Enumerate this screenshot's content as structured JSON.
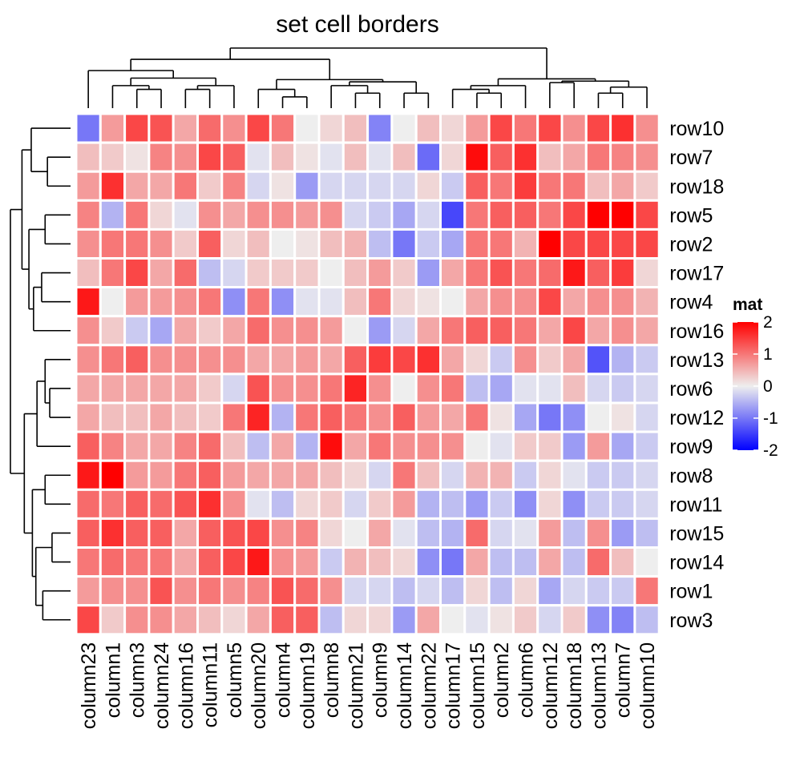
{
  "chart_data": {
    "type": "heatmap",
    "title": "set cell borders",
    "rows": [
      "row10",
      "row7",
      "row18",
      "row5",
      "row2",
      "row17",
      "row4",
      "row16",
      "row13",
      "row6",
      "row12",
      "row9",
      "row8",
      "row11",
      "row15",
      "row14",
      "row1",
      "row3"
    ],
    "columns": [
      "column23",
      "column1",
      "column3",
      "column24",
      "column16",
      "column11",
      "column5",
      "column20",
      "column4",
      "column19",
      "column8",
      "column21",
      "column9",
      "column14",
      "column22",
      "column17",
      "column15",
      "column2",
      "column6",
      "column12",
      "column18",
      "column13",
      "column7",
      "column10"
    ],
    "values": [
      [
        -1.0,
        0.7,
        1.4,
        1.3,
        0.6,
        1.1,
        0.8,
        1.4,
        1.0,
        0.0,
        0.2,
        0.4,
        -0.9,
        0.0,
        0.4,
        0.2,
        0.7,
        1.4,
        1.0,
        1.4,
        0.8,
        1.4,
        1.6,
        0.8
      ],
      [
        0.4,
        0.3,
        0.1,
        0.9,
        0.8,
        1.4,
        1.2,
        -0.1,
        0.4,
        0.1,
        -0.1,
        0.4,
        -0.1,
        0.4,
        -1.1,
        0.2,
        1.9,
        1.2,
        1.6,
        0.4,
        0.6,
        1.0,
        0.9,
        0.8
      ],
      [
        0.7,
        1.6,
        0.6,
        0.6,
        1.0,
        0.3,
        0.9,
        -0.2,
        0.1,
        -0.7,
        -0.2,
        -0.2,
        -0.2,
        -0.2,
        0.2,
        -0.3,
        1.2,
        1.0,
        1.5,
        1.0,
        1.0,
        0.4,
        0.6,
        0.3
      ],
      [
        0.9,
        -0.5,
        1.0,
        0.2,
        -0.1,
        0.8,
        0.6,
        0.8,
        0.8,
        0.7,
        0.8,
        -0.2,
        -0.3,
        -0.6,
        -0.2,
        -1.4,
        1.0,
        1.2,
        1.2,
        1.0,
        1.4,
        2.0,
        2.0,
        1.4
      ],
      [
        0.8,
        1.0,
        1.0,
        0.8,
        0.3,
        1.2,
        0.2,
        0.4,
        0.0,
        0.1,
        0.4,
        0.5,
        -0.4,
        -1.0,
        -0.3,
        -0.6,
        1.0,
        1.0,
        0.5,
        2.0,
        1.4,
        1.4,
        1.4,
        1.4
      ],
      [
        0.4,
        1.0,
        1.4,
        0.6,
        1.1,
        -0.4,
        -0.2,
        0.3,
        0.3,
        0.3,
        0.0,
        0.4,
        0.7,
        0.3,
        -0.7,
        0.6,
        1.0,
        1.3,
        1.0,
        1.1,
        1.8,
        1.2,
        1.5,
        0.2
      ],
      [
        1.8,
        0.0,
        0.7,
        0.7,
        0.8,
        1.0,
        -0.8,
        1.0,
        -0.8,
        -0.1,
        -0.1,
        0.4,
        1.0,
        0.2,
        0.1,
        0.0,
        0.6,
        0.8,
        0.8,
        1.4,
        0.6,
        0.8,
        0.8,
        0.5
      ],
      [
        0.8,
        0.3,
        -0.3,
        -0.6,
        0.6,
        0.3,
        0.6,
        1.1,
        0.8,
        0.8,
        0.7,
        0.0,
        -0.7,
        -0.2,
        0.6,
        1.0,
        1.2,
        1.2,
        1.0,
        0.6,
        1.4,
        0.6,
        0.8,
        0.6
      ],
      [
        0.8,
        1.0,
        1.2,
        0.8,
        0.8,
        0.8,
        0.8,
        0.6,
        0.6,
        0.7,
        0.6,
        1.2,
        1.5,
        1.4,
        1.6,
        0.6,
        0.2,
        -0.3,
        0.8,
        0.3,
        0.6,
        -1.3,
        -0.5,
        -0.3
      ],
      [
        0.6,
        0.6,
        0.6,
        0.6,
        0.6,
        0.3,
        -0.2,
        1.3,
        0.8,
        0.8,
        1.0,
        1.7,
        0.8,
        0.0,
        0.8,
        1.0,
        -0.4,
        -0.6,
        -0.1,
        -0.1,
        0.4,
        -0.2,
        -0.3,
        -0.2
      ],
      [
        0.6,
        0.4,
        0.4,
        0.6,
        0.4,
        0.3,
        1.0,
        1.7,
        -0.5,
        1.0,
        1.2,
        1.0,
        0.8,
        1.2,
        0.7,
        0.6,
        1.0,
        0.1,
        -0.6,
        -1.0,
        -0.8,
        0.0,
        0.1,
        -0.2
      ],
      [
        1.2,
        0.9,
        0.6,
        0.6,
        0.9,
        1.1,
        0.4,
        -0.4,
        0.6,
        -0.5,
        1.9,
        0.6,
        1.0,
        0.8,
        0.8,
        0.8,
        0.0,
        -0.1,
        0.3,
        0.3,
        -0.7,
        0.7,
        -0.6,
        -0.3
      ],
      [
        1.8,
        2.0,
        0.7,
        0.7,
        1.0,
        1.2,
        0.7,
        0.6,
        0.6,
        0.6,
        0.4,
        0.2,
        -0.2,
        1.0,
        0.4,
        -0.2,
        0.5,
        0.5,
        -0.3,
        0.2,
        -0.1,
        -0.3,
        -0.3,
        -0.2
      ],
      [
        1.1,
        1.0,
        1.2,
        1.1,
        1.3,
        1.6,
        0.8,
        -0.1,
        -0.4,
        0.2,
        0.3,
        -0.2,
        0.3,
        0.7,
        -0.5,
        -0.4,
        -0.7,
        -0.3,
        -0.8,
        0.2,
        -0.8,
        -0.3,
        -0.3,
        -0.2
      ],
      [
        1.2,
        1.6,
        1.2,
        1.2,
        0.6,
        1.2,
        1.3,
        1.4,
        0.8,
        0.9,
        0.2,
        0.0,
        0.6,
        -0.1,
        -0.4,
        -0.5,
        1.1,
        -0.2,
        -0.1,
        0.7,
        -0.4,
        0.8,
        -0.7,
        -0.4
      ],
      [
        1.0,
        1.1,
        1.0,
        1.0,
        0.6,
        1.2,
        1.4,
        1.8,
        0.8,
        0.7,
        -0.3,
        0.5,
        0.4,
        0.2,
        -0.8,
        -1.0,
        0.6,
        -0.4,
        -0.4,
        0.6,
        -0.4,
        1.1,
        0.4,
        0.0
      ],
      [
        0.7,
        0.8,
        0.8,
        1.3,
        0.8,
        1.0,
        0.8,
        0.9,
        1.3,
        1.1,
        0.8,
        -0.2,
        -0.2,
        -0.4,
        -0.2,
        -0.4,
        0.2,
        -0.4,
        0.2,
        -0.6,
        -0.2,
        -0.3,
        -0.3,
        1.0
      ],
      [
        1.4,
        0.3,
        0.8,
        0.8,
        0.6,
        0.4,
        0.2,
        0.6,
        1.2,
        1.2,
        -0.4,
        0.2,
        0.2,
        -0.7,
        0.6,
        0.0,
        -0.1,
        0.1,
        0.3,
        -0.2,
        0.3,
        -0.8,
        -0.9,
        -0.4
      ]
    ],
    "legend": {
      "title": "mat",
      "ticks": [
        "2",
        "1",
        "0",
        "-1",
        "-2"
      ],
      "tick_values": [
        2,
        1,
        0,
        -1,
        -2
      ],
      "placement": "right"
    },
    "colors": {
      "low": "#0000ff",
      "mid": "#eeeeee",
      "high": "#ff0000",
      "border": "#ffffff"
    },
    "row_dendrogram": "left",
    "column_dendrogram": "top",
    "grid": false
  }
}
